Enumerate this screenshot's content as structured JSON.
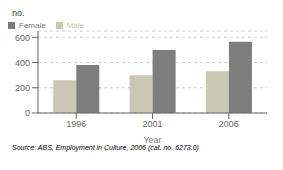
{
  "chart_data": {
    "type": "bar",
    "title": "no.",
    "xlabel": "Year",
    "categories": [
      "1996",
      "2001",
      "2006"
    ],
    "series": [
      {
        "name": "Male",
        "color": "#c8c8b4",
        "values": [
          260,
          300,
          330
        ]
      },
      {
        "name": "Female",
        "color": "#7d7d7d",
        "values": [
          380,
          500,
          565
        ]
      }
    ],
    "ylim": [
      0,
      650
    ],
    "yticks": [
      0,
      200,
      400,
      600
    ],
    "grid": true,
    "legend": "upper left",
    "annotations": [
      "Source: ABS, Employment in Culture, 2006 (cat. no. 6273.0)"
    ]
  }
}
